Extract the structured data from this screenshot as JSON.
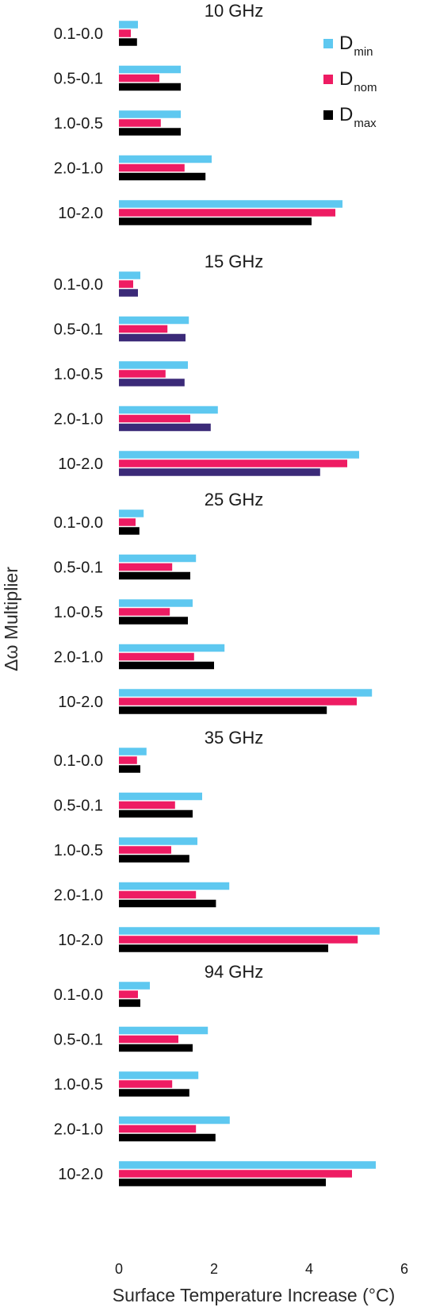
{
  "chart_data": {
    "type": "bar",
    "orientation": "horizontal",
    "xlabel": "Surface Temperature Increase (°C)",
    "ylabel": "Δω Multiplier",
    "xlim": [
      0,
      6
    ],
    "xticks": [
      0,
      2,
      4,
      6
    ],
    "categories": [
      "0.1-0.0",
      "0.5-0.1",
      "1.0-0.5",
      "2.0-1.0",
      "10-2.0"
    ],
    "legend": {
      "placement": "top-right",
      "entries": [
        {
          "main": "D",
          "sub": "min",
          "color": "#5ec8f0"
        },
        {
          "main": "D",
          "sub": "nom",
          "color": "#ee1c63"
        },
        {
          "main": "D",
          "sub": "max",
          "color": "#000000"
        }
      ]
    },
    "panels": [
      {
        "title": "10 GHz",
        "series": [
          {
            "name": "Dmin",
            "color": "#5ec8f0",
            "values": [
              0.4,
              1.3,
              1.3,
              1.95,
              4.7
            ]
          },
          {
            "name": "Dnom",
            "color": "#ee1c63",
            "values": [
              0.25,
              0.85,
              0.88,
              1.38,
              4.55
            ]
          },
          {
            "name": "Dmax",
            "color": "#000000",
            "values": [
              0.38,
              1.3,
              1.3,
              1.82,
              4.05
            ]
          }
        ]
      },
      {
        "title": "15 GHz",
        "series": [
          {
            "name": "Dmin",
            "color": "#5ec8f0",
            "values": [
              0.45,
              1.47,
              1.45,
              2.08,
              5.05
            ]
          },
          {
            "name": "Dnom",
            "color": "#ee1c63",
            "values": [
              0.3,
              1.02,
              0.98,
              1.5,
              4.8
            ]
          },
          {
            "name": "Dmax",
            "color": "#3b2a78",
            "values": [
              0.4,
              1.4,
              1.38,
              1.93,
              4.23
            ]
          }
        ]
      },
      {
        "title": "25 GHz",
        "series": [
          {
            "name": "Dmin",
            "color": "#5ec8f0",
            "values": [
              0.52,
              1.62,
              1.55,
              2.22,
              5.32
            ]
          },
          {
            "name": "Dnom",
            "color": "#ee1c63",
            "values": [
              0.35,
              1.12,
              1.07,
              1.58,
              5.0
            ]
          },
          {
            "name": "Dmax",
            "color": "#000000",
            "values": [
              0.43,
              1.5,
              1.45,
              2.0,
              4.37
            ]
          }
        ]
      },
      {
        "title": "35 GHz",
        "series": [
          {
            "name": "Dmin",
            "color": "#5ec8f0",
            "values": [
              0.58,
              1.75,
              1.65,
              2.32,
              5.48
            ]
          },
          {
            "name": "Dnom",
            "color": "#ee1c63",
            "values": [
              0.38,
              1.18,
              1.1,
              1.62,
              5.02
            ]
          },
          {
            "name": "Dmax",
            "color": "#000000",
            "values": [
              0.45,
              1.55,
              1.48,
              2.04,
              4.4
            ]
          }
        ]
      },
      {
        "title": "94 GHz",
        "series": [
          {
            "name": "Dmin",
            "color": "#5ec8f0",
            "values": [
              0.65,
              1.87,
              1.67,
              2.33,
              5.4
            ]
          },
          {
            "name": "Dnom",
            "color": "#ee1c63",
            "values": [
              0.4,
              1.25,
              1.12,
              1.62,
              4.9
            ]
          },
          {
            "name": "Dmax",
            "color": "#000000",
            "values": [
              0.45,
              1.55,
              1.48,
              2.03,
              4.35
            ]
          }
        ]
      }
    ]
  }
}
